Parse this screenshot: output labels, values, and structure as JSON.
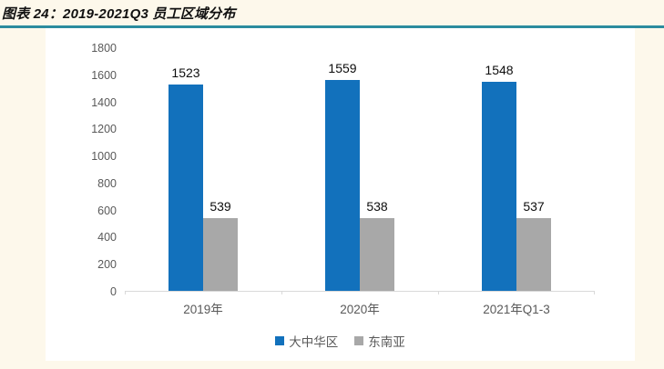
{
  "page": {
    "title": "图表 24：2019-2021Q3 员工区域分布"
  },
  "colors": {
    "page_background": "#FDF8EB",
    "panel_background": "#FFFFFF",
    "title_underline_teal": "#2B8C9E",
    "bar_blue": "#1271BC",
    "bar_gray": "#A8A8A8",
    "axis_line": "#D9D9D9",
    "tick_label_gray": "#595959",
    "value_label_black": "#0D0D0D"
  },
  "chart_data": {
    "type": "bar",
    "title": "图表 24：2019-2021Q3 员工区域分布",
    "categories": [
      "2019年",
      "2020年",
      "2021年Q1-3"
    ],
    "series": [
      {
        "name": "大中华区",
        "color": "#1271BC",
        "values": [
          1523,
          1559,
          1548
        ]
      },
      {
        "name": "东南亚",
        "color": "#A8A8A8",
        "values": [
          539,
          538,
          537
        ]
      }
    ],
    "xlabel": "",
    "ylabel": "",
    "ylim": [
      0,
      1800
    ],
    "ytick_interval": 200,
    "yticks": [
      1800,
      1600,
      1400,
      1200,
      1000,
      800,
      600,
      400,
      200,
      0
    ],
    "grid": false,
    "legend_position": "bottom",
    "data_labels": true
  }
}
